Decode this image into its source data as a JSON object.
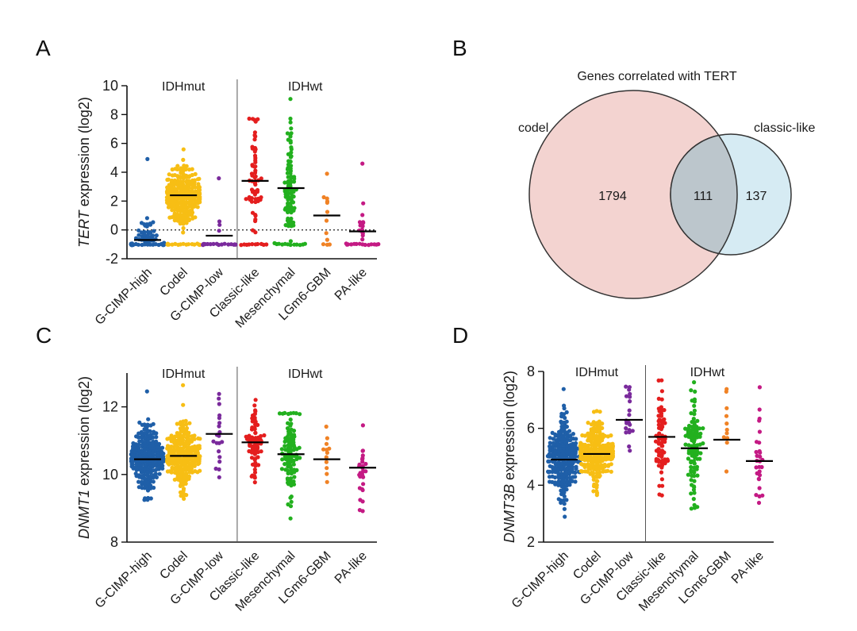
{
  "panels": {
    "A": "A",
    "B": "B",
    "C": "C",
    "D": "D"
  },
  "colors": {
    "G-CIMP-high": "#1f5fa8",
    "Codel": "#f7be14",
    "G-CIMP-low": "#7a2a9c",
    "Classic-like": "#e41e1e",
    "Mesenchymal": "#22b01e",
    "LGm6-GBM": "#f08225",
    "PA-like": "#c41a84",
    "venn_codel_fill": "#f3d3d0",
    "venn_classic_fill": "#d6ebf3",
    "venn_overlap_fill": "#bcc6cc",
    "venn_overlap_text": "#e8141c"
  },
  "chart_data": [
    {
      "type": "scatter",
      "panel": "A",
      "title": "",
      "xlabel": "",
      "ylabel_italic": "TERT",
      "ylabel_rest": " expression (log2)",
      "ylim": [
        -2,
        10
      ],
      "yticks": [
        -2,
        0,
        2,
        4,
        6,
        8,
        10
      ],
      "reference_line": 0,
      "group_labels": [
        "IDHmut",
        "IDHwt"
      ],
      "categories": [
        "G-CIMP-high",
        "Codel",
        "G-CIMP-low",
        "Classic-like",
        "Mesenchymal",
        "LGm6-GBM",
        "PA-like"
      ],
      "medians": [
        -0.7,
        2.4,
        -0.4,
        3.4,
        2.9,
        1.0,
        -0.1
      ],
      "dist": [
        {
          "n": 150,
          "mean": -0.6,
          "sd": 0.7,
          "min": -1.0,
          "max": 4.9,
          "floor_frac": 0.6
        },
        {
          "n": 260,
          "mean": 2.4,
          "sd": 1.1,
          "min": -1.0,
          "max": 5.6,
          "floor_frac": 0.05
        },
        {
          "n": 22,
          "mean": -0.6,
          "sd": 0.9,
          "min": -1.0,
          "max": 3.6,
          "floor_frac": 0.7
        },
        {
          "n": 70,
          "mean": 3.3,
          "sd": 1.9,
          "min": -1.0,
          "max": 7.7,
          "floor_frac": 0.1
        },
        {
          "n": 100,
          "mean": 2.8,
          "sd": 1.9,
          "min": -1.0,
          "max": 9.1,
          "floor_frac": 0.12
        },
        {
          "n": 12,
          "mean": 1.0,
          "sd": 1.5,
          "min": -1.0,
          "max": 3.9,
          "floor_frac": 0.2
        },
        {
          "n": 28,
          "mean": -0.1,
          "sd": 1.2,
          "min": -1.0,
          "max": 4.6,
          "floor_frac": 0.5
        }
      ]
    },
    {
      "type": "scatter",
      "panel": "C",
      "title": "",
      "xlabel": "",
      "ylabel_italic": "DNMT1",
      "ylabel_rest": " expression (log2)",
      "ylim": [
        8,
        13
      ],
      "yticks": [
        8,
        10,
        12
      ],
      "group_labels": [
        "IDHmut",
        "IDHwt"
      ],
      "categories": [
        "G-CIMP-high",
        "Codel",
        "G-CIMP-low",
        "Classic-like",
        "Mesenchymal",
        "LGm6-GBM",
        "PA-like"
      ],
      "medians": [
        10.45,
        10.55,
        11.2,
        10.95,
        10.6,
        10.45,
        10.2
      ],
      "dist": [
        {
          "n": 230,
          "mean": 10.45,
          "sd": 0.5,
          "min": 8.95,
          "max": 12.45,
          "floor_frac": 0
        },
        {
          "n": 230,
          "mean": 10.55,
          "sd": 0.5,
          "min": 9.1,
          "max": 12.65,
          "floor_frac": 0
        },
        {
          "n": 20,
          "mean": 11.1,
          "sd": 0.6,
          "min": 9.9,
          "max": 12.4,
          "floor_frac": 0
        },
        {
          "n": 70,
          "mean": 10.9,
          "sd": 0.65,
          "min": 9.3,
          "max": 12.2,
          "floor_frac": 0
        },
        {
          "n": 100,
          "mean": 10.6,
          "sd": 0.7,
          "min": 8.45,
          "max": 11.8,
          "floor_frac": 0
        },
        {
          "n": 12,
          "mean": 10.45,
          "sd": 0.5,
          "min": 9.6,
          "max": 11.4,
          "floor_frac": 0
        },
        {
          "n": 28,
          "mean": 10.2,
          "sd": 0.6,
          "min": 8.9,
          "max": 11.45,
          "floor_frac": 0
        }
      ]
    },
    {
      "type": "scatter",
      "panel": "D",
      "title": "",
      "xlabel": "",
      "ylabel_italic": "DNMT3B",
      "ylabel_rest": " expression (log2)",
      "ylim": [
        2,
        8
      ],
      "yticks": [
        2,
        4,
        6,
        8
      ],
      "group_labels": [
        "IDHmut",
        "IDHwt"
      ],
      "categories": [
        "G-CIMP-high",
        "Codel",
        "G-CIMP-low",
        "Classic-like",
        "Mesenchymal",
        "LGm6-GBM",
        "PA-like"
      ],
      "medians": [
        4.9,
        5.1,
        6.3,
        5.7,
        5.3,
        5.6,
        4.85
      ],
      "dist": [
        {
          "n": 230,
          "mean": 4.9,
          "sd": 0.7,
          "min": 2.9,
          "max": 7.4,
          "floor_frac": 0
        },
        {
          "n": 230,
          "mean": 5.1,
          "sd": 0.55,
          "min": 3.5,
          "max": 6.6,
          "floor_frac": 0
        },
        {
          "n": 20,
          "mean": 6.3,
          "sd": 0.7,
          "min": 4.5,
          "max": 7.45,
          "floor_frac": 0
        },
        {
          "n": 70,
          "mean": 5.6,
          "sd": 0.95,
          "min": 3.4,
          "max": 7.7,
          "floor_frac": 0
        },
        {
          "n": 100,
          "mean": 5.25,
          "sd": 0.9,
          "min": 3.2,
          "max": 7.6,
          "floor_frac": 0
        },
        {
          "n": 12,
          "mean": 5.6,
          "sd": 0.8,
          "min": 3.95,
          "max": 7.4,
          "floor_frac": 0
        },
        {
          "n": 28,
          "mean": 4.85,
          "sd": 0.9,
          "min": 3.4,
          "max": 7.45,
          "floor_frac": 0
        }
      ]
    },
    {
      "type": "venn",
      "panel": "B",
      "title": "Genes correlated with TERT",
      "sets": [
        {
          "name": "codel",
          "only": 1794
        },
        {
          "name": "classic-like",
          "only": 137
        }
      ],
      "intersection": 111
    }
  ]
}
